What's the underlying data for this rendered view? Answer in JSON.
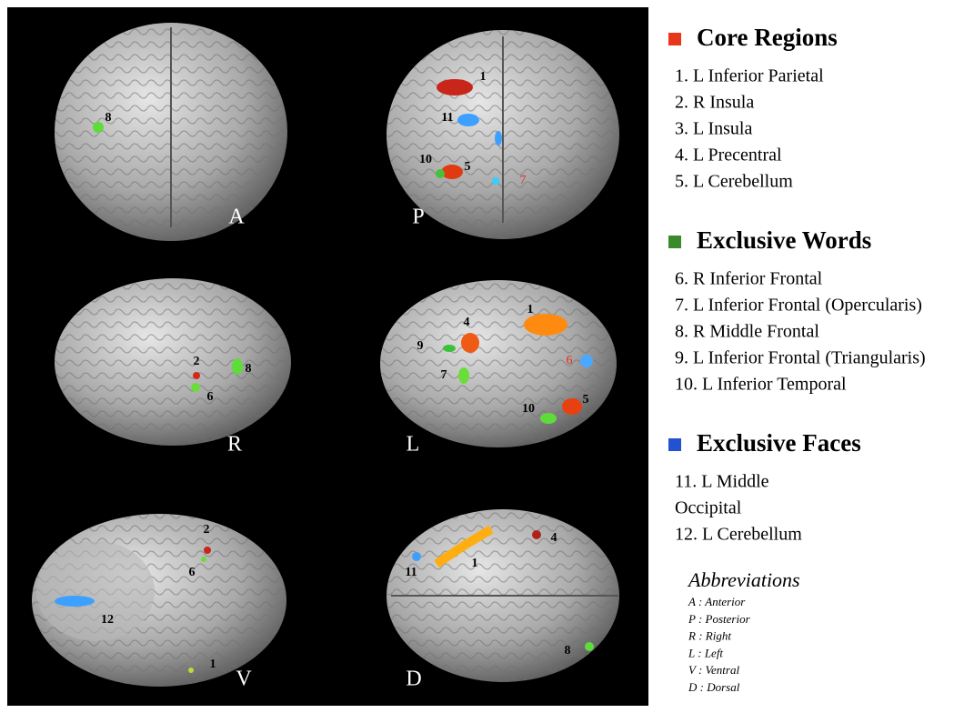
{
  "panels": [
    {
      "view": "A",
      "labels": [
        "8"
      ]
    },
    {
      "view": "P",
      "labels": [
        "1",
        "11",
        "10",
        "5",
        "7"
      ]
    },
    {
      "view": "R",
      "labels": [
        "2",
        "6",
        "8"
      ]
    },
    {
      "view": "L",
      "labels": [
        "1",
        "4",
        "9",
        "7",
        "6",
        "10",
        "5"
      ]
    },
    {
      "view": "V",
      "labels": [
        "2",
        "6",
        "12",
        "1"
      ]
    },
    {
      "view": "D",
      "labels": [
        "11",
        "1",
        "4",
        "8"
      ]
    }
  ],
  "legend": {
    "groups": [
      {
        "title": "Core Regions",
        "items": [
          "1. L Inferior Parietal",
          "2. R Insula",
          "3. L Insula",
          "4. L Precentral",
          "5. L Cerebellum"
        ]
      },
      {
        "title": "Exclusive Words",
        "items": [
          "6. R Inferior Frontal",
          "7. L Inferior Frontal (Opercularis)",
          "8. R Middle Frontal",
          "9. L Inferior Frontal (Triangularis)",
          "10. L Inferior Temporal"
        ]
      },
      {
        "title": "Exclusive Faces",
        "items": [
          "11. L Middle",
          "Occipital",
          "12. L Cerebellum"
        ]
      }
    ]
  },
  "abbreviations": {
    "title": "Abbreviations",
    "items": [
      "A : Anterior",
      "P : Posterior",
      "R : Right",
      "L : Left",
      "V : Ventral",
      "D : Dorsal"
    ]
  }
}
